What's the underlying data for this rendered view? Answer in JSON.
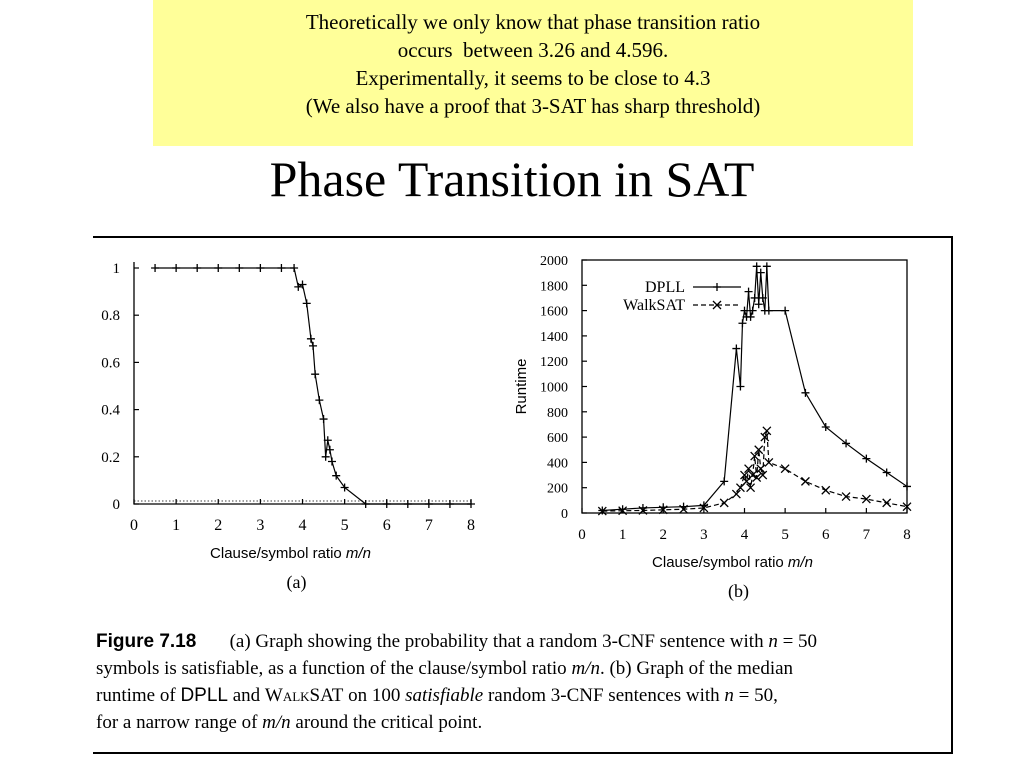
{
  "note": {
    "background": "#ffff99",
    "lines": [
      "Theoretically we only know that phase transition ratio",
      "occurs  between 3.26 and 4.596.",
      "Experimentally, it seems to be close to 4.3",
      "(We also have a proof that 3-SAT has sharp threshold)"
    ]
  },
  "title": "Phase Transition in SAT",
  "caption": {
    "fig_label": "Figure 7.18",
    "l1": "(a) Graph showing the probability that a random 3-CNF sentence with ",
    "l1_n": "n",
    "l1_eq": " = 50",
    "l2a": "symbols is satisfiable, as a function of the clause/symbol ratio ",
    "l2_mn": "m/n",
    "l2b": ". (b) Graph of the median",
    "l3a": "runtime of ",
    "l3_dpll": "DPLL",
    "l3b": " and ",
    "l3_walksat": "WalkSAT",
    "l3c": " on 100 ",
    "l3_sat": "satisfiable",
    "l3d": " random 3-CNF sentences with ",
    "l3_n": "n",
    "l3_eq": " = 50,",
    "l4a": "for a narrow range of ",
    "l4_mn": "m/n",
    "l4b": " around the critical point."
  },
  "chart_data": [
    {
      "type": "line",
      "panel_label": "(a)",
      "xlabel": "Clause/symbol ratio m/n",
      "ylabel": "",
      "xlim": [
        0,
        8
      ],
      "ylim": [
        0,
        1
      ],
      "x_ticks": [
        0,
        1,
        2,
        3,
        4,
        5,
        6,
        7,
        8
      ],
      "y_ticks": [
        0,
        0.2,
        0.4,
        0.6,
        0.8,
        1
      ],
      "y_tick_labels": [
        "0",
        "0.2",
        "0.4",
        "0.6",
        "0.8",
        "1"
      ],
      "reference_line": {
        "y": 0,
        "style": "dotted"
      },
      "series": [
        {
          "marker": "+",
          "x": [
            0.5,
            1.0,
            1.5,
            2.0,
            2.5,
            3.0,
            3.5,
            3.8,
            3.9,
            4.0,
            4.1,
            4.2,
            4.25,
            4.3,
            4.4,
            4.5,
            4.55,
            4.6,
            4.65,
            4.7,
            4.8,
            5.0,
            5.5,
            6.0,
            6.5,
            7.0,
            7.5,
            8.0
          ],
          "y": [
            1,
            1,
            1,
            1,
            1,
            1,
            1,
            1,
            0.92,
            0.93,
            0.85,
            0.7,
            0.67,
            0.55,
            0.44,
            0.36,
            0.2,
            0.27,
            0.23,
            0.18,
            0.12,
            0.07,
            0,
            0,
            0,
            0,
            0,
            0
          ]
        }
      ]
    },
    {
      "type": "line",
      "panel_label": "(b)",
      "xlabel": "Clause/symbol ratio m/n",
      "ylabel": "Runtime",
      "xlim": [
        0,
        8
      ],
      "ylim": [
        0,
        2000
      ],
      "x_ticks": [
        0,
        1,
        2,
        3,
        4,
        5,
        6,
        7,
        8
      ],
      "y_ticks": [
        0,
        200,
        400,
        600,
        800,
        1000,
        1200,
        1400,
        1600,
        1800,
        2000
      ],
      "legend_position": "top-left",
      "series": [
        {
          "name": "DPLL",
          "marker": "+",
          "dash": "solid",
          "x": [
            0.5,
            1.0,
            1.5,
            2.0,
            2.5,
            3.0,
            3.5,
            3.8,
            3.9,
            3.95,
            4.0,
            4.05,
            4.1,
            4.15,
            4.2,
            4.25,
            4.3,
            4.35,
            4.4,
            4.45,
            4.5,
            4.55,
            4.6,
            5.0,
            5.5,
            6.0,
            6.5,
            7.0,
            7.5,
            8.0
          ],
          "y": [
            20,
            30,
            40,
            45,
            50,
            60,
            250,
            1300,
            1000,
            1500,
            1600,
            1550,
            1750,
            1550,
            1600,
            1700,
            1950,
            1650,
            1900,
            1700,
            1600,
            1950,
            1600,
            1600,
            950,
            680,
            550,
            430,
            320,
            210
          ]
        },
        {
          "name": "WalkSAT",
          "marker": "x",
          "dash": "dashed",
          "x": [
            0.5,
            1.0,
            1.5,
            2.0,
            2.5,
            3.0,
            3.5,
            3.8,
            3.9,
            4.0,
            4.05,
            4.1,
            4.15,
            4.2,
            4.25,
            4.3,
            4.35,
            4.4,
            4.45,
            4.5,
            4.55,
            4.6,
            5.0,
            5.5,
            6.0,
            6.5,
            7.0,
            7.5,
            8.0
          ],
          "y": [
            15,
            18,
            20,
            25,
            30,
            40,
            80,
            150,
            200,
            300,
            250,
            350,
            200,
            300,
            450,
            280,
            500,
            350,
            300,
            600,
            650,
            400,
            350,
            250,
            180,
            130,
            110,
            80,
            50
          ]
        }
      ]
    }
  ]
}
